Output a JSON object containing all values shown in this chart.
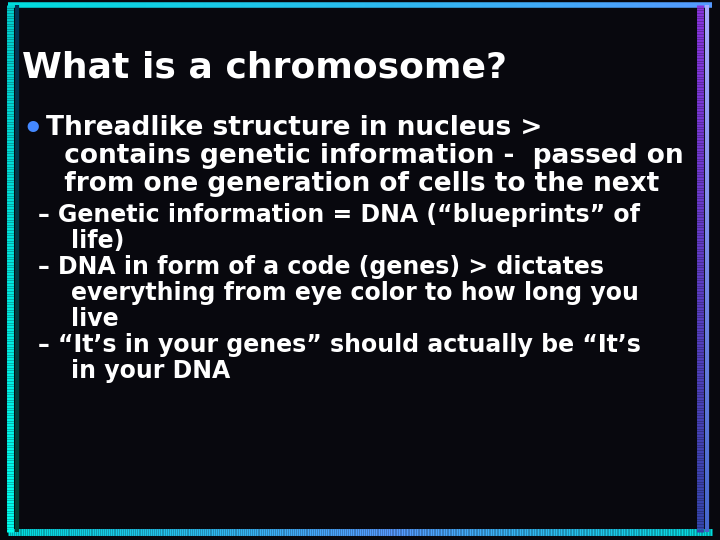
{
  "title": "What is a chromosome?",
  "background_color": "#08080e",
  "title_color": "#ffffff",
  "text_color": "#ffffff",
  "bullet_color": "#4488ff",
  "title_fontsize": 26,
  "bullet_fontsize": 19,
  "sub_fontsize": 17,
  "bullet_lines": [
    "Threadlike structure in nucleus >",
    "  contains genetic information -  passed on",
    "  from one generation of cells to the next"
  ],
  "sub_items": [
    [
      "– Genetic information = DNA (“blueprints” of",
      "    life)"
    ],
    [
      "– DNA in form of a code (genes) > dictates",
      "    everything from eye color to how long you",
      "    live"
    ],
    [
      "– “It’s in your genes” should actually be “It’s",
      "    in your DNA"
    ]
  ]
}
